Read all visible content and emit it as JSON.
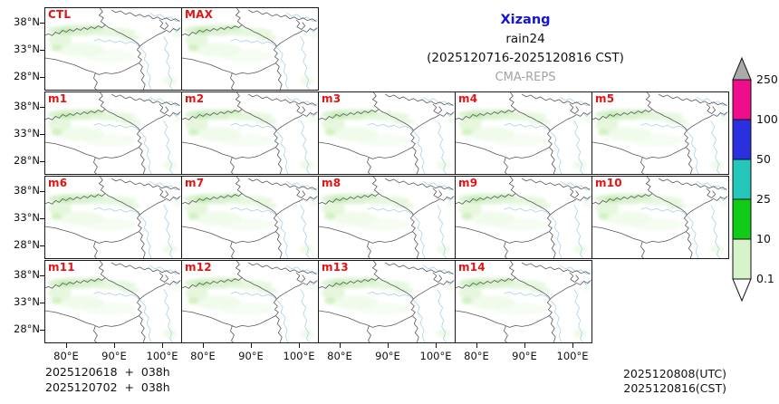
{
  "title": {
    "region": "Xizang",
    "product": "rain24",
    "period": "(2025120716-2025120816 CST)",
    "model": "CMA-REPS"
  },
  "panels": [
    {
      "label": "CTL",
      "row": 0,
      "col": 0,
      "dense": true,
      "yticks": true,
      "xticks": false
    },
    {
      "label": "MAX",
      "row": 0,
      "col": 1,
      "dense": true,
      "yticks": false,
      "xticks": false
    },
    {
      "label": "m1",
      "row": 1,
      "col": 0,
      "dense": false,
      "yticks": true,
      "xticks": false
    },
    {
      "label": "m2",
      "row": 1,
      "col": 1,
      "dense": false,
      "yticks": false,
      "xticks": false
    },
    {
      "label": "m3",
      "row": 1,
      "col": 2,
      "dense": false,
      "yticks": false,
      "xticks": false
    },
    {
      "label": "m4",
      "row": 1,
      "col": 3,
      "dense": false,
      "yticks": false,
      "xticks": false
    },
    {
      "label": "m5",
      "row": 1,
      "col": 4,
      "dense": false,
      "yticks": false,
      "xticks": false
    },
    {
      "label": "m6",
      "row": 2,
      "col": 0,
      "dense": false,
      "yticks": true,
      "xticks": false
    },
    {
      "label": "m7",
      "row": 2,
      "col": 1,
      "dense": false,
      "yticks": false,
      "xticks": false
    },
    {
      "label": "m8",
      "row": 2,
      "col": 2,
      "dense": false,
      "yticks": false,
      "xticks": false
    },
    {
      "label": "m9",
      "row": 2,
      "col": 3,
      "dense": false,
      "yticks": false,
      "xticks": false
    },
    {
      "label": "m10",
      "row": 2,
      "col": 4,
      "dense": false,
      "yticks": false,
      "xticks": false
    },
    {
      "label": "m11",
      "row": 3,
      "col": 0,
      "dense": false,
      "yticks": true,
      "xticks": true
    },
    {
      "label": "m12",
      "row": 3,
      "col": 1,
      "dense": false,
      "yticks": false,
      "xticks": true
    },
    {
      "label": "m13",
      "row": 3,
      "col": 2,
      "dense": false,
      "yticks": false,
      "xticks": true
    },
    {
      "label": "m14",
      "row": 3,
      "col": 3,
      "dense": false,
      "yticks": false,
      "xticks": true
    }
  ],
  "axes": {
    "y_ticks": [
      "38°N",
      "33°N",
      "28°N"
    ],
    "x_ticks": [
      "80°E",
      "90°E",
      "100°E"
    ]
  },
  "colorbar": {
    "tick_labels": [
      "250",
      "100",
      "50",
      "25",
      "10",
      "0.1"
    ],
    "segment_colors": [
      "#f00d8b",
      "#2a30dd",
      "#26c7bb",
      "#12cb16",
      "#d6f3ca"
    ],
    "top_arrow_color": "#aaaaaa",
    "bottom_arrow_color": "#ffffff"
  },
  "footer": {
    "left_line1": "2025120618  +  038h",
    "left_line2": "2025120702  +  038h",
    "right_line1": "2025120808(UTC)",
    "right_line2": "2025120816(CST)"
  },
  "chart_data": {
    "type": "heatmap",
    "title": "Xizang rain24 (2025120716-2025120816 CST) CMA-REPS ensemble",
    "members": [
      "CTL",
      "MAX",
      "m1",
      "m2",
      "m3",
      "m4",
      "m5",
      "m6",
      "m7",
      "m8",
      "m9",
      "m10",
      "m11",
      "m12",
      "m13",
      "m14"
    ],
    "colorscale_bounds_mm": [
      0.1,
      10,
      25,
      50,
      100,
      250
    ],
    "lon_ticks_deg_e": [
      80,
      90,
      100
    ],
    "lat_ticks_deg_n": [
      38,
      33,
      28
    ],
    "legend_position": "right"
  }
}
